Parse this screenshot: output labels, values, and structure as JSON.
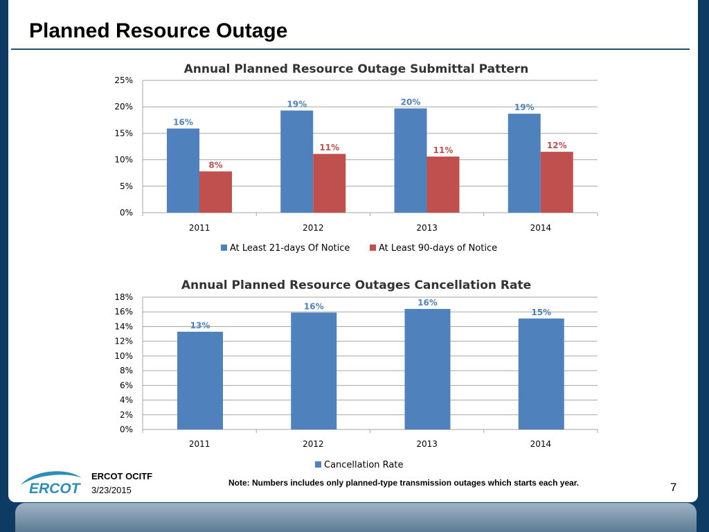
{
  "page": {
    "title": "Planned Resource Outage",
    "footer_org": "ERCOT OCITF",
    "footer_date": "3/23/2015",
    "note": "Note: Numbers includes only planned-type transmission outages which starts each year.",
    "page_number": "7",
    "logo_text": "ERCOT"
  },
  "colors": {
    "blue": "#4f81bd",
    "red": "#c0504d",
    "blue_label": "#4f81bd",
    "red_label": "#c0504d",
    "grid": "#a6a6a6",
    "axis_text": "#000000"
  },
  "chart_data": [
    {
      "type": "bar",
      "title": "Annual Planned Resource Outage Submittal Pattern",
      "categories": [
        "2011",
        "2012",
        "2013",
        "2014"
      ],
      "series": [
        {
          "name": "At Least 21-days Of Notice",
          "values": [
            16,
            19,
            20,
            19
          ],
          "labels": [
            "16%",
            "19%",
            "20%",
            "19%"
          ]
        },
        {
          "name": "At Least 90-days of Notice",
          "values": [
            8,
            11,
            11,
            12
          ],
          "labels": [
            "8%",
            "11%",
            "11%",
            "12%"
          ]
        }
      ],
      "plotted_values": [
        [
          15.9,
          19.3,
          19.7,
          18.7
        ],
        [
          7.8,
          11.1,
          10.6,
          11.5
        ]
      ],
      "ylim": [
        0,
        25
      ],
      "yticks": [
        0,
        5,
        10,
        15,
        20,
        25
      ],
      "ytick_labels": [
        "0%",
        "5%",
        "10%",
        "15%",
        "20%",
        "25%"
      ],
      "legend": "bottom",
      "grid": true
    },
    {
      "type": "bar",
      "title": "Annual Planned Resource Outages Cancellation Rate",
      "categories": [
        "2011",
        "2012",
        "2013",
        "2014"
      ],
      "series": [
        {
          "name": "Cancellation Rate",
          "values": [
            13,
            16,
            16,
            15
          ],
          "labels": [
            "13%",
            "16%",
            "16%",
            "15%"
          ]
        }
      ],
      "plotted_values": [
        [
          13.3,
          15.9,
          16.4,
          15.1
        ]
      ],
      "ylim": [
        0,
        18
      ],
      "yticks": [
        0,
        2,
        4,
        6,
        8,
        10,
        12,
        14,
        16,
        18
      ],
      "ytick_labels": [
        "0%",
        "2%",
        "4%",
        "6%",
        "8%",
        "10%",
        "12%",
        "14%",
        "16%",
        "18%"
      ],
      "legend": "bottom",
      "grid": true
    }
  ]
}
